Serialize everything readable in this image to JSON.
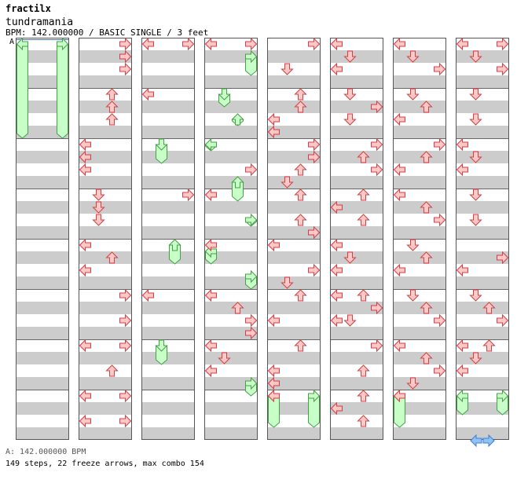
{
  "header": {
    "author": "fractilx",
    "title": "tundramania",
    "info": "BPM: 142.000000 / BASIC SINGLE / 3 feet",
    "bpm_marker": "A"
  },
  "footer": {
    "bpm_line": "A: 142.000000 BPM",
    "stats": "149 steps, 22 freeze arrows, max combo 154"
  },
  "colors": {
    "stripe": "#cccccc",
    "arrow_fill": "#ffc8c8",
    "arrow_stroke": "#d44040",
    "freeze_fill": "#c8ffc8",
    "freeze_stroke": "#44a044",
    "end_arrow_fill": "#8ec3f2",
    "end_arrow_stroke": "#3f7fd0"
  },
  "chart": {
    "columns": 8,
    "measures_per_column": 8,
    "lanes": [
      "left",
      "down",
      "up",
      "right"
    ],
    "note_unit": "position in 4th-note beats from start of column (0-32); lanes 0=left 1=down 2=up 3=right",
    "columns_data": [
      {
        "notes": [],
        "freezes": [
          [
            0,
            0,
            8
          ],
          [
            3,
            0,
            8
          ]
        ]
      },
      {
        "notes": [
          [
            3,
            0
          ],
          [
            3,
            1
          ],
          [
            3,
            2
          ],
          [
            2,
            4
          ],
          [
            2,
            5
          ],
          [
            2,
            6
          ],
          [
            0,
            8
          ],
          [
            0,
            9
          ],
          [
            0,
            10
          ],
          [
            1,
            12
          ],
          [
            1,
            13
          ],
          [
            1,
            14
          ],
          [
            0,
            16
          ],
          [
            0,
            18
          ],
          [
            2,
            17
          ],
          [
            0,
            24
          ],
          [
            2,
            26
          ],
          [
            3,
            28
          ],
          [
            3,
            30
          ],
          [
            0,
            28
          ],
          [
            0,
            30
          ],
          [
            3,
            20
          ],
          [
            3,
            22
          ],
          [
            3,
            24
          ]
        ],
        "freezes": []
      },
      {
        "notes": [
          [
            0,
            0
          ],
          [
            3,
            0
          ],
          [
            0,
            4
          ],
          [
            3,
            12
          ],
          [
            0,
            20
          ]
        ],
        "freezes": [
          [
            1,
            8,
            10
          ],
          [
            2,
            16,
            18
          ],
          [
            1,
            24,
            26
          ]
        ]
      },
      {
        "notes": [
          [
            0,
            0
          ],
          [
            3,
            0
          ],
          [
            0,
            12
          ],
          [
            0,
            24
          ],
          [
            3,
            10
          ],
          [
            3,
            22
          ],
          [
            0,
            20
          ],
          [
            2,
            21
          ],
          [
            3,
            23
          ],
          [
            1,
            25
          ],
          [
            0,
            16
          ],
          [
            0,
            26
          ]
        ],
        "freezes": [
          [
            3,
            1,
            3
          ],
          [
            1,
            4,
            5.5
          ],
          [
            2,
            6,
            7
          ],
          [
            0,
            8,
            9
          ],
          [
            2,
            11,
            13
          ],
          [
            3,
            14,
            15
          ],
          [
            0,
            16.5,
            18
          ],
          [
            3,
            18.5,
            20
          ],
          [
            3,
            27,
            28.5
          ]
        ]
      },
      {
        "notes": [
          [
            3,
            0
          ],
          [
            1,
            2
          ],
          [
            2,
            4
          ],
          [
            2,
            5
          ],
          [
            0,
            6
          ],
          [
            0,
            7
          ],
          [
            3,
            8
          ],
          [
            3,
            9
          ],
          [
            2,
            10
          ],
          [
            1,
            11
          ],
          [
            2,
            12
          ],
          [
            2,
            14
          ],
          [
            3,
            15
          ],
          [
            0,
            16
          ],
          [
            3,
            18
          ],
          [
            1,
            19
          ],
          [
            2,
            20
          ],
          [
            0,
            22
          ],
          [
            2,
            24
          ],
          [
            0,
            26
          ],
          [
            0,
            28
          ],
          [
            0,
            27
          ]
        ],
        "freezes": [
          [
            0,
            28,
            31
          ],
          [
            3,
            28,
            31
          ]
        ]
      },
      {
        "notes": [
          [
            0,
            0
          ],
          [
            1,
            1
          ],
          [
            0,
            2
          ],
          [
            1,
            4
          ],
          [
            3,
            5
          ],
          [
            1,
            6
          ],
          [
            3,
            8
          ],
          [
            2,
            9
          ],
          [
            3,
            10
          ],
          [
            2,
            12
          ],
          [
            0,
            13
          ],
          [
            2,
            14
          ],
          [
            0,
            16
          ],
          [
            1,
            17
          ],
          [
            0,
            18
          ],
          [
            2,
            20
          ],
          [
            3,
            21
          ],
          [
            3,
            24
          ],
          [
            2,
            26
          ],
          [
            1,
            22
          ],
          [
            0,
            20
          ],
          [
            2,
            28
          ],
          [
            0,
            29
          ],
          [
            2,
            30
          ],
          [
            0,
            22
          ]
        ],
        "freezes": []
      },
      {
        "notes": [
          [
            0,
            0
          ],
          [
            1,
            1
          ],
          [
            3,
            2
          ],
          [
            1,
            4
          ],
          [
            2,
            5
          ],
          [
            0,
            6
          ],
          [
            3,
            8
          ],
          [
            2,
            9
          ],
          [
            0,
            10
          ],
          [
            0,
            12
          ],
          [
            2,
            13
          ],
          [
            3,
            14
          ],
          [
            1,
            16
          ],
          [
            2,
            17
          ],
          [
            0,
            18
          ],
          [
            1,
            20
          ],
          [
            2,
            21
          ],
          [
            3,
            22
          ],
          [
            0,
            24
          ],
          [
            2,
            25
          ],
          [
            3,
            26
          ],
          [
            1,
            27
          ],
          [
            0,
            28
          ]
        ],
        "freezes": [
          [
            0,
            28,
            31
          ]
        ]
      },
      {
        "notes": [
          [
            0,
            0
          ],
          [
            3,
            0
          ],
          [
            1,
            1
          ],
          [
            3,
            2
          ],
          [
            1,
            4
          ],
          [
            1,
            6
          ],
          [
            0,
            8
          ],
          [
            1,
            9
          ],
          [
            0,
            10
          ],
          [
            1,
            12
          ],
          [
            1,
            14
          ],
          [
            3,
            17
          ],
          [
            0,
            18
          ],
          [
            1,
            20
          ],
          [
            0,
            26
          ],
          [
            2,
            21
          ],
          [
            3,
            22
          ],
          [
            2,
            24
          ],
          [
            1,
            25
          ],
          [
            0,
            24
          ]
        ],
        "freezes": [
          [
            0,
            28,
            30
          ],
          [
            3,
            28,
            30
          ]
        ]
      }
    ],
    "end_arrows": [
      "left",
      "right"
    ]
  }
}
